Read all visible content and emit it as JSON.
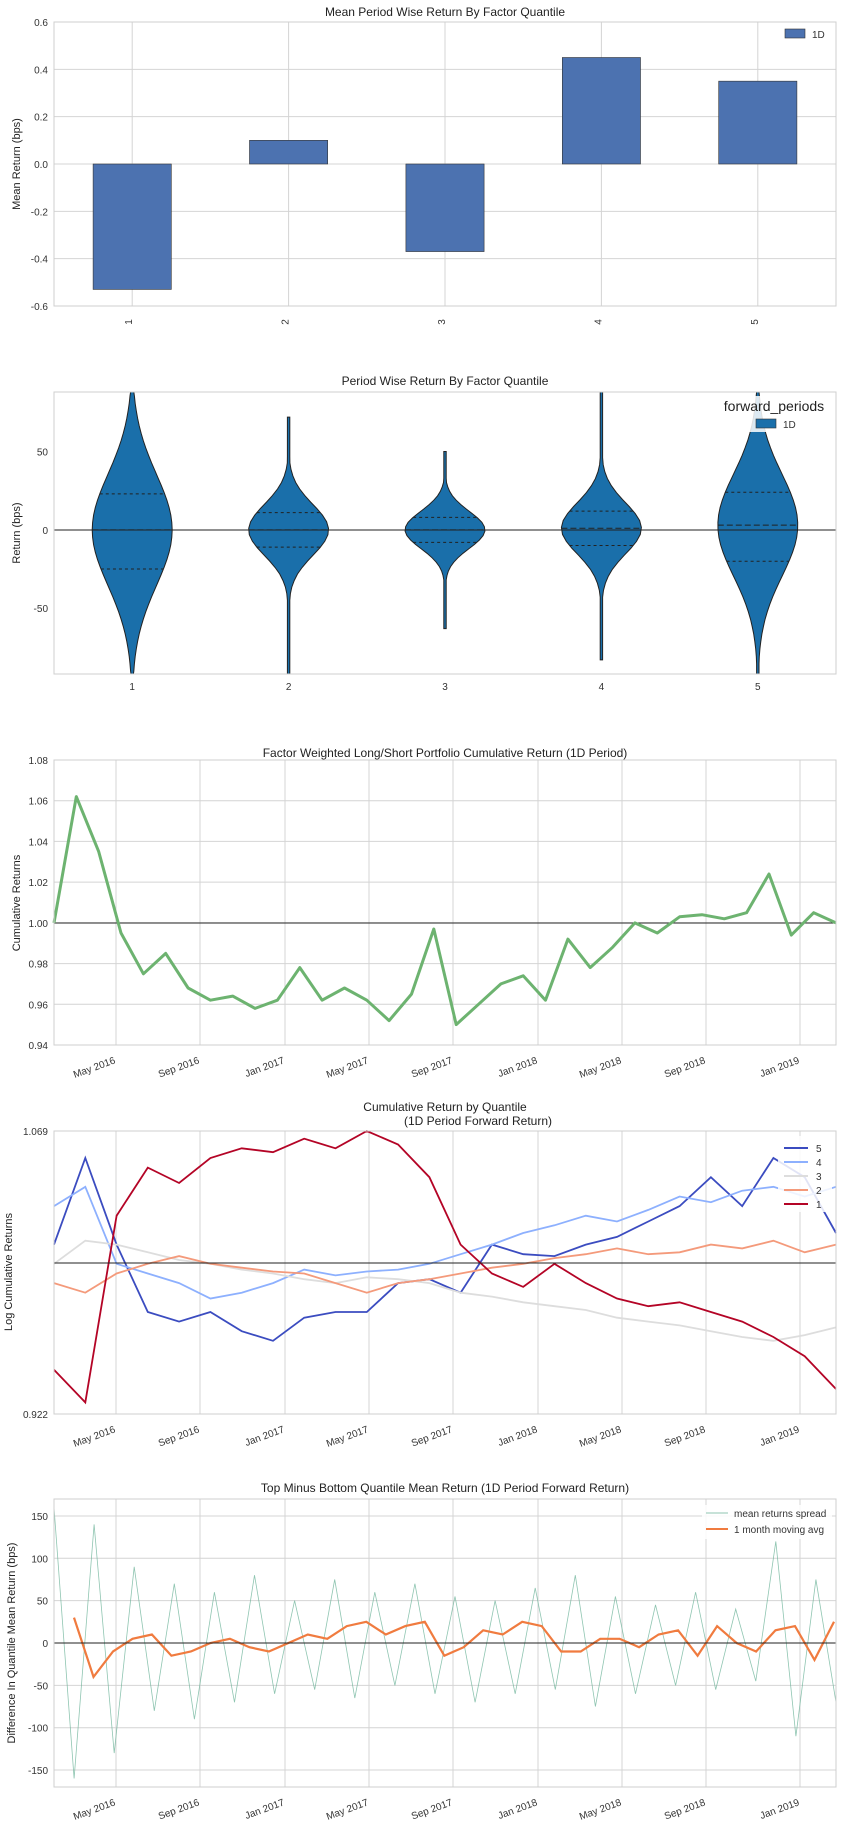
{
  "chart_data": [
    {
      "type": "bar",
      "title": "Mean Period Wise Return By Factor Quantile",
      "ylabel": "Mean Return (bps)",
      "xlabel": "",
      "categories": [
        "1",
        "2",
        "3",
        "4",
        "5"
      ],
      "series": [
        {
          "name": "1D",
          "values": [
            -0.53,
            0.1,
            -0.37,
            0.45,
            0.35
          ]
        }
      ],
      "ylim": [
        -0.6,
        0.6
      ],
      "yticks": [
        "0.6",
        "0.4",
        "0.2",
        "0.0",
        "-0.2",
        "-0.4",
        "-0.6"
      ],
      "legend": "top-right",
      "grid": true,
      "colors": {
        "bar": "#4c72b0"
      }
    },
    {
      "type": "violin",
      "title": "Period Wise Return By Factor Quantile",
      "ylabel": "Return (bps)",
      "xlabel": "",
      "categories": [
        "1",
        "2",
        "3",
        "4",
        "5"
      ],
      "ylim": [
        -92,
        88
      ],
      "yticks": [
        "50",
        "0",
        "-50"
      ],
      "legend_title": "forward_periods",
      "series": [
        {
          "name": "1D"
        }
      ],
      "legend": "top-right",
      "violins": [
        {
          "min": -95,
          "max": 95,
          "q1": -25,
          "median": 0,
          "q3": 23,
          "width": 40
        },
        {
          "min": -95,
          "max": 72,
          "q1": -11,
          "median": 0,
          "q3": 11,
          "width": 40
        },
        {
          "min": -63,
          "max": 50,
          "q1": -8,
          "median": 0,
          "q3": 8,
          "width": 40
        },
        {
          "min": -83,
          "max": 95,
          "q1": -10,
          "median": 1,
          "q3": 12,
          "width": 40
        },
        {
          "min": -95,
          "max": 95,
          "q1": -20,
          "median": 3,
          "q3": 24,
          "width": 40
        }
      ],
      "colors": {
        "violin": "#1a6faa"
      }
    },
    {
      "type": "line",
      "title": "Factor Weighted Long/Short Portfolio Cumulative Return (1D Period)",
      "ylabel": "Cumulative Returns",
      "xlabel": "",
      "ylim": [
        0.94,
        1.08
      ],
      "yticks": [
        "1.08",
        "1.06",
        "1.04",
        "1.02",
        "1.00",
        "0.98",
        "0.96",
        "0.94"
      ],
      "xticks": [
        "May 2016",
        "Sep 2016",
        "Jan 2017",
        "May 2017",
        "Sep 2017",
        "Jan 2018",
        "May 2018",
        "Sep 2018",
        "Jan 2019"
      ],
      "x": [
        "Feb 2016",
        "Mar 2016",
        "Apr 2016",
        "May 2016",
        "Jun 2016",
        "Jul 2016",
        "Aug 2016",
        "Sep 2016",
        "Oct 2016",
        "Nov 2016",
        "Dec 2016",
        "Jan 2017",
        "Feb 2017",
        "Mar 2017",
        "Apr 2017",
        "May 2017",
        "Jun 2017",
        "Jul 2017",
        "Aug 2017",
        "Sep 2017",
        "Oct 2017",
        "Nov 2017",
        "Dec 2017",
        "Jan 2018",
        "Feb 2018",
        "Mar 2018",
        "Apr 2018",
        "May 2018",
        "Jun 2018",
        "Jul 2018",
        "Aug 2018",
        "Sep 2018",
        "Oct 2018",
        "Nov 2018",
        "Dec 2018",
        "Jan 2019"
      ],
      "series": [
        {
          "values": [
            1.0,
            1.062,
            1.035,
            0.995,
            0.975,
            0.985,
            0.968,
            0.962,
            0.964,
            0.958,
            0.962,
            0.978,
            0.962,
            0.968,
            0.962,
            0.952,
            0.965,
            0.997,
            0.95,
            0.96,
            0.97,
            0.974,
            0.962,
            0.992,
            0.978,
            0.988,
            1.0,
            0.995,
            1.003,
            1.004,
            1.002,
            1.005,
            1.024,
            0.994,
            1.005,
            1.0
          ]
        }
      ],
      "colors": {
        "line": "#6db370"
      }
    },
    {
      "type": "line",
      "title": "Cumulative Return by Quantile\n(1D Period Forward Return)",
      "title_lines": [
        "Cumulative Return by Quantile",
        "(1D Period Forward Return)"
      ],
      "ylabel": "Log Cumulative Returns",
      "xlabel": "",
      "ylim": [
        0.922,
        1.069
      ],
      "yticks": [
        "1.069",
        "0.922"
      ],
      "xticks": [
        "May 2016",
        "Sep 2016",
        "Jan 2017",
        "May 2017",
        "Sep 2017",
        "Jan 2018",
        "May 2018",
        "Sep 2018",
        "Jan 2019"
      ],
      "legend": "top-right",
      "series": [
        {
          "name": "5",
          "color": "#3b4cc0",
          "values": [
            1.01,
            1.055,
            1.01,
            0.975,
            0.97,
            0.975,
            0.965,
            0.96,
            0.972,
            0.975,
            0.975,
            0.99,
            0.992,
            0.985,
            1.01,
            1.005,
            1.004,
            1.01,
            1.014,
            1.022,
            1.03,
            1.045,
            1.03,
            1.055,
            1.045,
            1.016
          ]
        },
        {
          "name": "4",
          "color": "#8db0fe",
          "values": [
            1.03,
            1.04,
            1.0,
            0.995,
            0.99,
            0.982,
            0.985,
            0.99,
            0.997,
            0.994,
            0.996,
            0.997,
            1.0,
            1.005,
            1.01,
            1.016,
            1.02,
            1.025,
            1.022,
            1.028,
            1.035,
            1.032,
            1.038,
            1.04,
            1.035,
            1.04
          ]
        },
        {
          "name": "3",
          "color": "#dddddd",
          "values": [
            1.0,
            1.012,
            1.01,
            1.006,
            1.002,
            1.0,
            0.997,
            0.995,
            0.992,
            0.99,
            0.993,
            0.992,
            0.99,
            0.985,
            0.983,
            0.98,
            0.978,
            0.976,
            0.972,
            0.97,
            0.968,
            0.965,
            0.962,
            0.96,
            0.963,
            0.967
          ]
        },
        {
          "name": "2",
          "color": "#f49a7b",
          "values": [
            0.99,
            0.985,
            0.995,
            1.0,
            1.004,
            1.0,
            0.998,
            0.996,
            0.995,
            0.99,
            0.985,
            0.99,
            0.992,
            0.995,
            0.998,
            1.0,
            1.003,
            1.005,
            1.008,
            1.005,
            1.006,
            1.01,
            1.008,
            1.012,
            1.006,
            1.01
          ]
        },
        {
          "name": "1",
          "color": "#b40426",
          "values": [
            0.945,
            0.928,
            1.025,
            1.05,
            1.042,
            1.055,
            1.06,
            1.058,
            1.065,
            1.06,
            1.069,
            1.062,
            1.045,
            1.01,
            0.995,
            0.988,
            1.0,
            0.99,
            0.982,
            0.978,
            0.98,
            0.975,
            0.97,
            0.962,
            0.952,
            0.935
          ]
        }
      ]
    },
    {
      "type": "line",
      "title": "Top Minus Bottom Quantile Mean Return (1D Period Forward Return)",
      "ylabel": "Difference In Quantile Mean Return (bps)",
      "xlabel": "",
      "ylim": [
        -170,
        170
      ],
      "yticks": [
        "150",
        "100",
        "50",
        "0",
        "-50",
        "-100",
        "-150"
      ],
      "xticks": [
        "May 2016",
        "Sep 2016",
        "Jan 2017",
        "May 2017",
        "Sep 2017",
        "Jan 2018",
        "May 2018",
        "Sep 2018",
        "Jan 2019"
      ],
      "legend": "top-right",
      "series": [
        {
          "name": "mean returns spread",
          "color": "#6ab297",
          "values": [
            160,
            -160,
            140,
            -130,
            90,
            -80,
            70,
            -90,
            60,
            -70,
            80,
            -60,
            50,
            -55,
            75,
            -65,
            60,
            -50,
            70,
            -60,
            55,
            -70,
            50,
            -60,
            65,
            -55,
            80,
            -75,
            55,
            -60,
            45,
            -50,
            60,
            -55,
            40,
            -45,
            120,
            -110,
            75,
            -70
          ]
        },
        {
          "name": "1 month moving avg",
          "color": "#f07b3f",
          "values": [
            30,
            -40,
            -10,
            5,
            10,
            -15,
            -10,
            0,
            5,
            -5,
            -10,
            0,
            10,
            5,
            20,
            25,
            10,
            20,
            25,
            -15,
            -5,
            15,
            10,
            25,
            20,
            -10,
            -10,
            5,
            5,
            -5,
            10,
            15,
            -15,
            20,
            0,
            -10,
            15,
            20,
            -20,
            25
          ]
        }
      ]
    }
  ]
}
